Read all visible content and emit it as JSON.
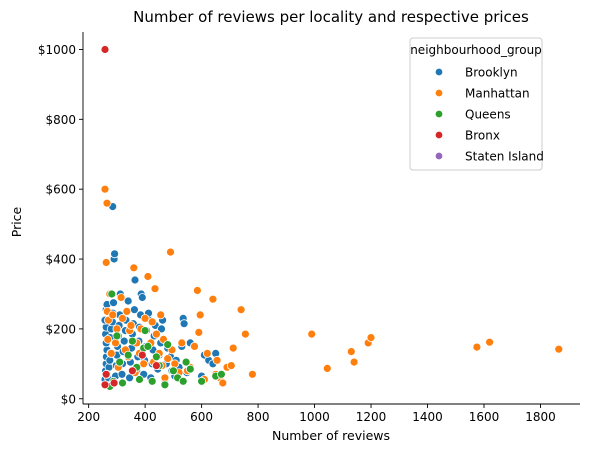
{
  "chart_data": {
    "type": "scatter",
    "title": "Number of reviews per locality and respective prices",
    "xlabel": "Number of reviews",
    "ylabel": "Price",
    "xlim": [
      180,
      1940
    ],
    "ylim": [
      -15,
      1050
    ],
    "x_ticks": [
      200,
      400,
      600,
      800,
      1000,
      1200,
      1400,
      1600,
      1800
    ],
    "x_tick_labels": [
      "200",
      "400",
      "600",
      "800",
      "1000",
      "1200",
      "1400",
      "1600",
      "1800"
    ],
    "y_ticks": [
      0,
      200,
      400,
      600,
      800,
      1000
    ],
    "y_tick_labels": [
      "$0",
      "$200",
      "$400",
      "$600",
      "$800",
      "$1000"
    ],
    "grid": false,
    "legend": {
      "title": "neighbourhood_group",
      "placement": "top-right",
      "entries": [
        "Brooklyn",
        "Manhattan",
        "Queens",
        "Bronx",
        "Staten Island"
      ]
    },
    "series": [
      {
        "name": "Brooklyn",
        "color": "#1f77b4",
        "points": [
          [
            258,
            55
          ],
          [
            260,
            80
          ],
          [
            262,
            100
          ],
          [
            263,
            120
          ],
          [
            265,
            140
          ],
          [
            262,
            160
          ],
          [
            260,
            185
          ],
          [
            262,
            205
          ],
          [
            258,
            225
          ],
          [
            262,
            255
          ],
          [
            265,
            270
          ],
          [
            270,
            60
          ],
          [
            272,
            90
          ],
          [
            275,
            110
          ],
          [
            278,
            130
          ],
          [
            276,
            175
          ],
          [
            280,
            200
          ],
          [
            284,
            220
          ],
          [
            286,
            245
          ],
          [
            288,
            275
          ],
          [
            285,
            550
          ],
          [
            290,
            400
          ],
          [
            292,
            415
          ],
          [
            295,
            65
          ],
          [
            298,
            95
          ],
          [
            300,
            125
          ],
          [
            302,
            150
          ],
          [
            305,
            180
          ],
          [
            308,
            210
          ],
          [
            310,
            240
          ],
          [
            312,
            300
          ],
          [
            318,
            70
          ],
          [
            320,
            100
          ],
          [
            322,
            135
          ],
          [
            326,
            165
          ],
          [
            330,
            195
          ],
          [
            332,
            225
          ],
          [
            335,
            250
          ],
          [
            340,
            280
          ],
          [
            345,
            60
          ],
          [
            348,
            105
          ],
          [
            352,
            145
          ],
          [
            355,
            185
          ],
          [
            358,
            215
          ],
          [
            362,
            255
          ],
          [
            364,
            340
          ],
          [
            370,
            80
          ],
          [
            374,
            120
          ],
          [
            378,
            165
          ],
          [
            380,
            205
          ],
          [
            384,
            240
          ],
          [
            386,
            300
          ],
          [
            390,
            290
          ],
          [
            395,
            70
          ],
          [
            398,
            110
          ],
          [
            402,
            150
          ],
          [
            405,
            195
          ],
          [
            410,
            230
          ],
          [
            412,
            245
          ],
          [
            420,
            60
          ],
          [
            425,
            100
          ],
          [
            428,
            140
          ],
          [
            432,
            180
          ],
          [
            436,
            210
          ],
          [
            445,
            85
          ],
          [
            450,
            125
          ],
          [
            455,
            160
          ],
          [
            458,
            200
          ],
          [
            462,
            225
          ],
          [
            470,
            55
          ],
          [
            475,
            100
          ],
          [
            480,
            145
          ],
          [
            490,
            120
          ],
          [
            495,
            80
          ],
          [
            505,
            65
          ],
          [
            510,
            110
          ],
          [
            520,
            90
          ],
          [
            530,
            150
          ],
          [
            535,
            230
          ],
          [
            538,
            215
          ],
          [
            548,
            75
          ],
          [
            560,
            160
          ],
          [
            575,
            150
          ],
          [
            600,
            65
          ],
          [
            610,
            125
          ],
          [
            625,
            110
          ],
          [
            640,
            100
          ],
          [
            650,
            130
          ]
        ]
      },
      {
        "name": "Manhattan",
        "color": "#ff7f0e",
        "points": [
          [
            258,
            600
          ],
          [
            265,
            560
          ],
          [
            262,
            390
          ],
          [
            266,
            250
          ],
          [
            270,
            225
          ],
          [
            268,
            170
          ],
          [
            275,
            300
          ],
          [
            280,
            130
          ],
          [
            285,
            240
          ],
          [
            295,
            160
          ],
          [
            300,
            200
          ],
          [
            305,
            90
          ],
          [
            315,
            290
          ],
          [
            320,
            230
          ],
          [
            330,
            140
          ],
          [
            335,
            250
          ],
          [
            340,
            120
          ],
          [
            345,
            195
          ],
          [
            350,
            210
          ],
          [
            360,
            375
          ],
          [
            365,
            75
          ],
          [
            370,
            160
          ],
          [
            380,
            130
          ],
          [
            385,
            200
          ],
          [
            395,
            100
          ],
          [
            400,
            230
          ],
          [
            410,
            350
          ],
          [
            420,
            160
          ],
          [
            425,
            220
          ],
          [
            430,
            105
          ],
          [
            435,
            315
          ],
          [
            440,
            185
          ],
          [
            450,
            130
          ],
          [
            455,
            240
          ],
          [
            460,
            95
          ],
          [
            465,
            170
          ],
          [
            470,
            60
          ],
          [
            480,
            115
          ],
          [
            490,
            420
          ],
          [
            495,
            140
          ],
          [
            505,
            100
          ],
          [
            520,
            75
          ],
          [
            530,
            160
          ],
          [
            550,
            80
          ],
          [
            560,
            90
          ],
          [
            575,
            150
          ],
          [
            585,
            310
          ],
          [
            590,
            190
          ],
          [
            595,
            240
          ],
          [
            610,
            55
          ],
          [
            620,
            130
          ],
          [
            640,
            285
          ],
          [
            650,
            70
          ],
          [
            655,
            110
          ],
          [
            665,
            60
          ],
          [
            675,
            45
          ],
          [
            690,
            90
          ],
          [
            705,
            95
          ],
          [
            712,
            145
          ],
          [
            740,
            255
          ],
          [
            755,
            185
          ],
          [
            780,
            70
          ],
          [
            990,
            185
          ],
          [
            1045,
            87
          ],
          [
            1130,
            135
          ],
          [
            1140,
            105
          ],
          [
            1190,
            160
          ],
          [
            1200,
            175
          ],
          [
            1575,
            148
          ],
          [
            1620,
            162
          ],
          [
            1865,
            142
          ]
        ]
      },
      {
        "name": "Queens",
        "color": "#2ca02c",
        "points": [
          [
            265,
            70
          ],
          [
            275,
            35
          ],
          [
            282,
            300
          ],
          [
            288,
            50
          ],
          [
            300,
            180
          ],
          [
            310,
            105
          ],
          [
            320,
            45
          ],
          [
            340,
            125
          ],
          [
            355,
            165
          ],
          [
            370,
            90
          ],
          [
            380,
            55
          ],
          [
            395,
            145
          ],
          [
            400,
            195
          ],
          [
            410,
            150
          ],
          [
            425,
            50
          ],
          [
            440,
            120
          ],
          [
            450,
            95
          ],
          [
            470,
            40
          ],
          [
            480,
            155
          ],
          [
            500,
            80
          ],
          [
            515,
            60
          ],
          [
            535,
            50
          ],
          [
            545,
            105
          ],
          [
            560,
            85
          ],
          [
            600,
            50
          ],
          [
            650,
            65
          ],
          [
            670,
            70
          ]
        ]
      },
      {
        "name": "Bronx",
        "color": "#d62728",
        "points": [
          [
            258,
            1000
          ],
          [
            258,
            40
          ],
          [
            262,
            70
          ],
          [
            290,
            45
          ],
          [
            355,
            80
          ],
          [
            390,
            125
          ],
          [
            440,
            95
          ]
        ]
      },
      {
        "name": "Staten Island",
        "color": "#9467bd",
        "points": []
      }
    ]
  }
}
